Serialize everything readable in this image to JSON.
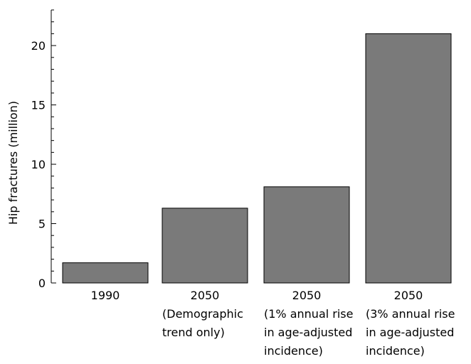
{
  "chart_data": {
    "type": "bar",
    "title": "",
    "xlabel": "",
    "ylabel": "Hip fractures (million)",
    "categories": [
      [
        "1990"
      ],
      [
        "2050",
        "(Demographic",
        "trend only)"
      ],
      [
        "2050",
        "(1% annual rise",
        "in age-adjusted",
        "incidence)"
      ],
      [
        "2050",
        "(3% annual rise",
        "in age-adjusted",
        "incidence)"
      ]
    ],
    "values": [
      1.7,
      6.3,
      8.1,
      21.0
    ],
    "ylim": [
      0,
      23
    ],
    "yticks": [
      "0",
      "5",
      "10",
      "15",
      "20"
    ],
    "grid": false,
    "colors": {
      "bar": "#7a7a7a",
      "axis": "#000000"
    }
  }
}
